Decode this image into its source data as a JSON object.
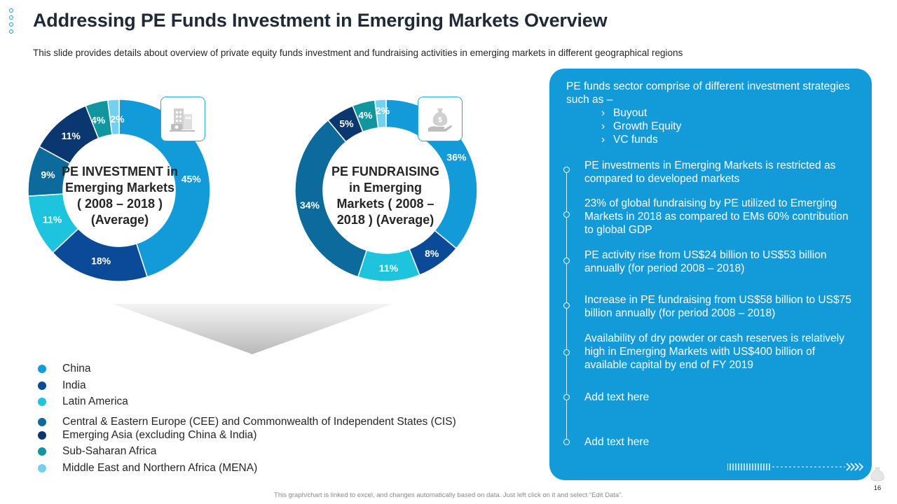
{
  "header": {
    "title": "Addressing PE Funds Investment in Emerging Markets Overview",
    "subtitle": "This slide provides details about overview of private equity funds investment and fundraising activities in emerging markets in different geographical regions"
  },
  "colors": {
    "China": "#129ad9",
    "India": "#0a4a96",
    "Latin America": "#1ec4de",
    "CEE and CIS": "#0d6b9c",
    "Emerging Asia": "#0a3770",
    "Sub-Saharan Africa": "#11959e",
    "MENA": "#73d0ee",
    "panel": "#129ad9"
  },
  "chart_data": [
    {
      "type": "pie",
      "donut": true,
      "title": "PE INVESTMENT in Emerging Markets ( 2008 – 2018 ) (Average)",
      "title_lines": [
        "PE INVESTMENT in",
        "Emerging Markets",
        "( 2008 – 2018 )",
        "(Average)"
      ],
      "icon": "building-money-icon",
      "categories": [
        "China",
        "India",
        "Latin America",
        "CEE and CIS",
        "Emerging Asia",
        "Sub-Saharan Africa",
        "MENA"
      ],
      "values": [
        45,
        18,
        11,
        9,
        11,
        4,
        2
      ],
      "labels": [
        "45%",
        "18%",
        "11%",
        "9%",
        "11%",
        "4%",
        "2%"
      ]
    },
    {
      "type": "pie",
      "donut": true,
      "title": "PE FUNDRAISING in Emerging Markets ( 2008 – 2018 ) (Average)",
      "title_lines": [
        "PE FUNDRAISING",
        "in Emerging",
        "Markets ( 2008 –",
        "2018 ) (Average)"
      ],
      "icon": "money-bag-hand-icon",
      "categories": [
        "China",
        "India",
        "Latin America",
        "CEE and CIS",
        "Emerging Asia",
        "Sub-Saharan Africa",
        "MENA"
      ],
      "values": [
        36,
        8,
        11,
        34,
        5,
        4,
        2
      ],
      "labels": [
        "36%",
        "8%",
        "11%",
        "34%",
        "5%",
        "4%",
        "2%"
      ]
    }
  ],
  "legend": [
    {
      "label": "China",
      "color": "#129ad9"
    },
    {
      "label": "India",
      "color": "#0a4a96"
    },
    {
      "label": "Latin America",
      "color": "#1ec4de"
    },
    {
      "label": "Central & Eastern Europe (CEE) and Commonwealth of Independent States (CIS)",
      "color": "#0d6b9c"
    },
    {
      "label": "Emerging Asia (excluding China & India)",
      "color": "#0a3770"
    },
    {
      "label": "Sub-Saharan Africa",
      "color": "#11959e"
    },
    {
      "label": "Middle East and Northern Africa (MENA)",
      "color": "#73d0ee"
    }
  ],
  "panel": {
    "intro": "PE funds sector comprise of different investment strategies such as –",
    "strategies": [
      "Buyout",
      "Growth Equity",
      "VC funds"
    ],
    "chevron": "›",
    "bullets": [
      "PE investments in Emerging Markets is restricted as compared to developed markets",
      "23% of global fundraising by PE utilized to Emerging Markets in 2018 as compared to EMs 60% contribution to global GDP",
      "PE activity rise from US$24 billion to US$53 billion annually  (for period 2008 – 2018)",
      "Increase  in PE fundraising  from US$58 billion to US$75 billion annually  (for period 2008 – 2018)",
      "Availability of dry powder or cash reserves is relatively high in Emerging Markets with US$400 billion of available capital by end of FY 2019",
      "Add text here",
      "Add text here"
    ]
  },
  "footer": {
    "note": "This graph/chart is linked to excel, and changes automatically based on data. Just left click on it and select “Edit Data”.",
    "page_number": "16"
  }
}
